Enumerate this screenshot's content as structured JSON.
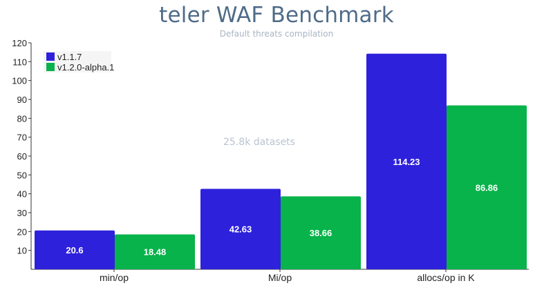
{
  "chart_data": {
    "type": "bar",
    "title": "teler WAF Benchmark",
    "subtitle": "Default threats compilation",
    "annotation": "25.8k datasets",
    "categories": [
      "min/op",
      "Mi/op",
      "allocs/op in K"
    ],
    "series": [
      {
        "name": "v1.1.7",
        "color": "#2e21dc",
        "values": [
          20.6,
          42.63,
          114.23
        ],
        "labels": [
          "20.6",
          "42.63",
          "114.23"
        ]
      },
      {
        "name": "v1.2.0-alpha.1",
        "color": "#07b34a",
        "values": [
          18.48,
          38.66,
          86.86
        ],
        "labels": [
          "18.48",
          "38.66",
          "86.86"
        ]
      }
    ],
    "ylim": [
      0,
      120
    ],
    "yticks": [
      "10",
      "20",
      "30",
      "40",
      "50",
      "60",
      "70",
      "80",
      "90",
      "100",
      "110",
      "120"
    ],
    "xlabel": "",
    "ylabel": "",
    "grid": false,
    "legend_position": "top-left"
  }
}
